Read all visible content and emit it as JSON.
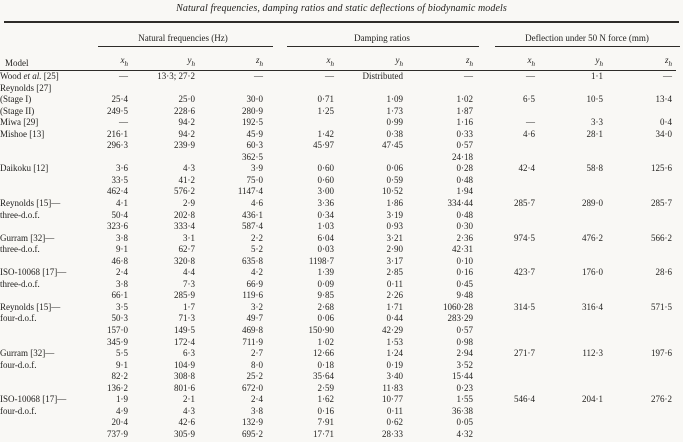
{
  "title": "Natural frequencies, damping ratios and static deflections of biodynamic models",
  "table": {
    "model_header": "Model",
    "groups": [
      {
        "label": "Natural frequencies (Hz)"
      },
      {
        "label": "Damping ratios"
      },
      {
        "label": "Deflection under 50 N force (mm)"
      }
    ],
    "subheaders": [
      {
        "base": "x",
        "sub": "h"
      },
      {
        "base": "y",
        "sub": "h"
      },
      {
        "base": "z",
        "sub": "h"
      },
      {
        "base": "x",
        "sub": "h"
      },
      {
        "base": "y",
        "sub": "h"
      },
      {
        "base": "z",
        "sub": "h"
      },
      {
        "base": "x",
        "sub": "h"
      },
      {
        "base": "y",
        "sub": "h"
      },
      {
        "base": "z",
        "sub": "h"
      }
    ],
    "rows": [
      {
        "model_pre": "Wood ",
        "model_it": "et al.",
        "model_post": " [25]",
        "cells": [
          "—",
          "13·3; 27·2",
          "—",
          "—",
          "Distributed",
          "—",
          "—",
          "1·1",
          "—"
        ]
      },
      {
        "model_pre": "Reynolds [27]",
        "cells": [
          "",
          "",
          "",
          "",
          "",
          "",
          "",
          "",
          ""
        ]
      },
      {
        "model_pre": "(Stage I)",
        "cells": [
          "25·4",
          "25·0",
          "30·0",
          "0·71",
          "1·09",
          "1·02",
          "6·5",
          "10·5",
          "13·4"
        ]
      },
      {
        "model_pre": "(Stage II)",
        "cells": [
          "249·5",
          "228·6",
          "280·9",
          "1·25",
          "1·73",
          "1·87",
          "",
          "",
          ""
        ]
      },
      {
        "model_pre": "Miwa [29]",
        "cells": [
          "—",
          "94·2",
          "192·5",
          "",
          "0·99",
          "1·16",
          "—",
          "3·3",
          "0·4"
        ]
      },
      {
        "model_pre": "Mishoe [13]",
        "cells": [
          "216·1",
          "94·2",
          "45·9",
          "1·42",
          "0·38",
          "0·33",
          "4·6",
          "28·1",
          "34·0"
        ]
      },
      {
        "model_pre": "",
        "cells": [
          "296·3",
          "239·9",
          "60·3",
          "45·97",
          "47·45",
          "0·57",
          "",
          "",
          ""
        ]
      },
      {
        "model_pre": "",
        "cells": [
          "",
          "",
          "362·5",
          "",
          "",
          "24·18",
          "",
          "",
          ""
        ]
      },
      {
        "model_pre": "Daikoku [12]",
        "cells": [
          "3·6",
          "4·3",
          "3·9",
          "0·60",
          "0·06",
          "0·28",
          "42·4",
          "58·8",
          "125·6"
        ]
      },
      {
        "model_pre": "",
        "cells": [
          "33·5",
          "41·2",
          "75·0",
          "0·60",
          "0·59",
          "0·48",
          "",
          "",
          ""
        ]
      },
      {
        "model_pre": "",
        "cells": [
          "462·4",
          "576·2",
          "1147·4",
          "3·00",
          "10·52",
          "1·94",
          "",
          "",
          ""
        ]
      },
      {
        "model_pre": "Reynolds [15]—",
        "cells": [
          "4·1",
          "2·9",
          "4·6",
          "3·36",
          "1·86",
          "334·44",
          "285·7",
          "289·0",
          "285·7"
        ]
      },
      {
        "model_pre": "three-d.o.f.",
        "cells": [
          "50·4",
          "202·8",
          "436·1",
          "0·34",
          "3·19",
          "0·48",
          "",
          "",
          ""
        ]
      },
      {
        "model_pre": "",
        "cells": [
          "323·6",
          "333·4",
          "587·4",
          "1·03",
          "0·93",
          "0·30",
          "",
          "",
          ""
        ]
      },
      {
        "model_pre": "Gurram [32]—",
        "cells": [
          "3·8",
          "3·1",
          "2·2",
          "6·04",
          "3·21",
          "2·36",
          "974·5",
          "476·2",
          "566·2"
        ]
      },
      {
        "model_pre": "three-d.o.f.",
        "cells": [
          "9·1",
          "62·7",
          "5·2",
          "0·03",
          "2·90",
          "42·31",
          "",
          "",
          ""
        ]
      },
      {
        "model_pre": "",
        "cells": [
          "46·8",
          "320·8",
          "635·8",
          "1198·7",
          "3·17",
          "0·10",
          "",
          "",
          ""
        ]
      },
      {
        "model_pre": "ISO-10068 [17]—",
        "cells": [
          "2·4",
          "4·4",
          "4·2",
          "1·39",
          "2·85",
          "0·16",
          "423·7",
          "176·0",
          "28·6"
        ]
      },
      {
        "model_pre": "three-d.o.f.",
        "cells": [
          "3·8",
          "7·3",
          "66·9",
          "0·09",
          "0·11",
          "0·45",
          "",
          "",
          ""
        ]
      },
      {
        "model_pre": "",
        "cells": [
          "66·1",
          "285·9",
          "119·6",
          "9·85",
          "2·26",
          "9·48",
          "",
          "",
          ""
        ]
      },
      {
        "model_pre": "Reynolds [15]—",
        "cells": [
          "3·5",
          "1·7",
          "3·2",
          "2·68",
          "1·71",
          "1060·28",
          "314·5",
          "316·4",
          "571·5"
        ]
      },
      {
        "model_pre": "four-d.o.f.",
        "cells": [
          "50·3",
          "71·3",
          "49·7",
          "0·06",
          "0·44",
          "283·29",
          "",
          "",
          ""
        ]
      },
      {
        "model_pre": "",
        "cells": [
          "157·0",
          "149·5",
          "469·8",
          "150·90",
          "42·29",
          "0·57",
          "",
          "",
          ""
        ]
      },
      {
        "model_pre": "",
        "cells": [
          "345·9",
          "172·4",
          "711·9",
          "1·02",
          "1·53",
          "0·98",
          "",
          "",
          ""
        ]
      },
      {
        "model_pre": "Gurram [32]—",
        "cells": [
          "5·5",
          "6·3",
          "2·7",
          "12·66",
          "1·24",
          "2·94",
          "271·7",
          "112·3",
          "197·6"
        ]
      },
      {
        "model_pre": "four-d.o.f.",
        "cells": [
          "9·1",
          "104·9",
          "8·0",
          "0·18",
          "0·19",
          "3·52",
          "",
          "",
          ""
        ]
      },
      {
        "model_pre": "",
        "cells": [
          "82·2",
          "308·8",
          "25·2",
          "35·64",
          "3·40",
          "15·44",
          "",
          "",
          ""
        ]
      },
      {
        "model_pre": "",
        "cells": [
          "136·2",
          "801·6",
          "672·0",
          "2·59",
          "11·83",
          "0·23",
          "",
          "",
          ""
        ]
      },
      {
        "model_pre": "ISO-10068 [17]—",
        "cells": [
          "1·9",
          "2·1",
          "2·4",
          "1·62",
          "10·77",
          "1·55",
          "546·4",
          "204·1",
          "276·2"
        ]
      },
      {
        "model_pre": "four-d.o.f.",
        "cells": [
          "4·9",
          "4·3",
          "3·8",
          "0·16",
          "0·11",
          "36·38",
          "",
          "",
          ""
        ]
      },
      {
        "model_pre": "",
        "cells": [
          "20·4",
          "42·6",
          "132·9",
          "7·91",
          "0·62",
          "0·05",
          "",
          "",
          ""
        ]
      },
      {
        "model_pre": "",
        "cells": [
          "737·9",
          "305·9",
          "695·2",
          "17·71",
          "28·33",
          "4·32",
          "",
          "",
          ""
        ]
      }
    ]
  }
}
